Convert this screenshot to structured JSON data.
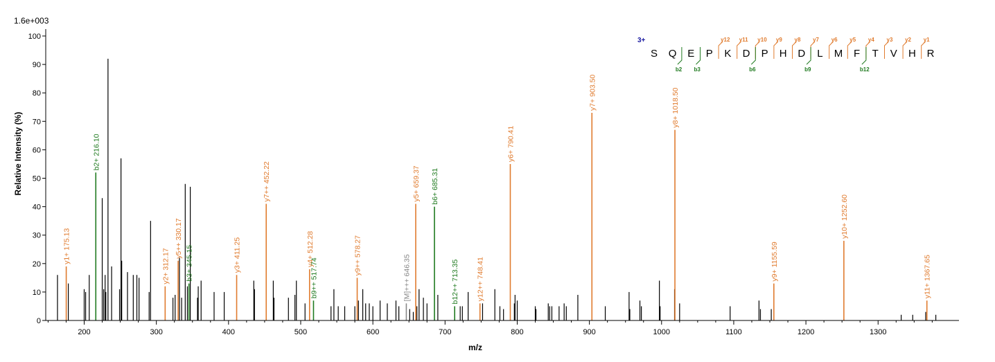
{
  "chart_data": {
    "type": "bar",
    "scale_label": "1.6e+003",
    "xlabel": "m/z",
    "ylabel": "Relative   Intensity (%)",
    "xlim": [
      150,
      1400
    ],
    "ylim": [
      0,
      100
    ],
    "xticks": [
      200,
      300,
      400,
      500,
      600,
      700,
      800,
      900,
      1000,
      1100,
      1200,
      1300
    ],
    "yticks": [
      0,
      10,
      20,
      30,
      40,
      50,
      60,
      70,
      80,
      90,
      100
    ],
    "colors": {
      "y_ion": "#e07b2e",
      "b_ion": "#1f7a1f",
      "precursor": "#888888",
      "unassigned": "#000000"
    },
    "peaks_unassigned": [
      [
        163,
        16
      ],
      [
        178,
        13
      ],
      [
        200,
        11
      ],
      [
        202,
        10
      ],
      [
        207,
        16
      ],
      [
        225,
        43
      ],
      [
        227,
        11
      ],
      [
        229,
        16
      ],
      [
        230,
        10
      ],
      [
        233,
        92
      ],
      [
        238,
        19
      ],
      [
        249,
        11
      ],
      [
        251,
        57
      ],
      [
        252,
        21
      ],
      [
        260,
        17
      ],
      [
        268,
        16
      ],
      [
        273,
        16
      ],
      [
        276,
        15
      ],
      [
        290,
        10
      ],
      [
        292,
        35
      ],
      [
        323,
        8
      ],
      [
        326,
        9
      ],
      [
        332,
        22
      ],
      [
        335,
        8
      ],
      [
        340,
        48
      ],
      [
        343,
        12
      ],
      [
        347,
        47
      ],
      [
        357,
        8
      ],
      [
        358,
        12
      ],
      [
        362,
        14
      ],
      [
        380,
        10
      ],
      [
        394,
        10
      ],
      [
        435,
        14
      ],
      [
        436,
        11
      ],
      [
        462,
        14
      ],
      [
        463,
        8
      ],
      [
        483,
        8
      ],
      [
        492,
        9
      ],
      [
        494,
        14
      ],
      [
        506,
        6
      ],
      [
        542,
        5
      ],
      [
        546,
        11
      ],
      [
        552,
        5
      ],
      [
        561,
        5
      ],
      [
        575,
        5
      ],
      [
        580,
        7
      ],
      [
        586,
        11
      ],
      [
        590,
        6
      ],
      [
        595,
        6
      ],
      [
        600,
        5
      ],
      [
        610,
        7
      ],
      [
        620,
        6
      ],
      [
        632,
        7
      ],
      [
        636,
        5
      ],
      [
        651,
        4
      ],
      [
        656,
        3
      ],
      [
        661,
        5
      ],
      [
        664,
        11
      ],
      [
        670,
        8
      ],
      [
        675,
        6
      ],
      [
        690,
        9
      ],
      [
        721,
        5
      ],
      [
        724,
        5
      ],
      [
        732,
        10
      ],
      [
        752,
        6
      ],
      [
        769,
        11
      ],
      [
        776,
        5
      ],
      [
        781,
        4
      ],
      [
        796,
        6
      ],
      [
        797,
        9
      ],
      [
        800,
        7
      ],
      [
        825,
        5
      ],
      [
        826,
        4
      ],
      [
        843,
        6
      ],
      [
        845,
        5
      ],
      [
        848,
        5
      ],
      [
        858,
        5
      ],
      [
        865,
        6
      ],
      [
        868,
        5
      ],
      [
        884,
        9
      ],
      [
        922,
        5
      ],
      [
        955,
        10
      ],
      [
        956,
        4
      ],
      [
        970,
        7
      ],
      [
        972,
        5
      ],
      [
        997,
        14
      ],
      [
        998,
        5
      ],
      [
        1018,
        11
      ],
      [
        1025,
        6
      ],
      [
        1095,
        5
      ],
      [
        1135,
        7
      ],
      [
        1137,
        4
      ],
      [
        1152,
        4
      ],
      [
        1332,
        2
      ],
      [
        1348,
        2
      ],
      [
        1366,
        3
      ],
      [
        1380,
        2
      ]
    ],
    "peaks_labeled": [
      {
        "mz": 175.13,
        "intensity": 19,
        "label": "y1+ 175.13",
        "ion": "y"
      },
      {
        "mz": 216.1,
        "intensity": 52,
        "label": "b2+ 216.10",
        "ion": "b"
      },
      {
        "mz": 312.17,
        "intensity": 12,
        "label": "y2+ 312.17",
        "ion": "y"
      },
      {
        "mz": 330.17,
        "intensity": 21,
        "label": "y5++ 330.17",
        "ion": "y"
      },
      {
        "mz": 345.15,
        "intensity": 13,
        "label": "b3+ 345.15",
        "ion": "b"
      },
      {
        "mz": 411.25,
        "intensity": 16,
        "label": "y3+ 411.25",
        "ion": "y"
      },
      {
        "mz": 452.22,
        "intensity": 41,
        "label": "y7++ 452.22",
        "ion": "y"
      },
      {
        "mz": 512.28,
        "intensity": 18,
        "label": "y4+ 512.28",
        "ion": "y"
      },
      {
        "mz": 517.74,
        "intensity": 7,
        "label": "b9++ 517.74",
        "ion": "b"
      },
      {
        "mz": 578.27,
        "intensity": 15,
        "label": "y9++ 578.27",
        "ion": "y"
      },
      {
        "mz": 646.35,
        "intensity": 6,
        "label": "[M]+++ 646.35",
        "ion": "p"
      },
      {
        "mz": 659.37,
        "intensity": 41,
        "label": "y5+ 659.37",
        "ion": "y"
      },
      {
        "mz": 685.31,
        "intensity": 40,
        "label": "b6+ 685.31",
        "ion": "b"
      },
      {
        "mz": 713.35,
        "intensity": 5,
        "label": "b12++ 713.35",
        "ion": "b"
      },
      {
        "mz": 748.41,
        "intensity": 6,
        "label": "y12++ 748.41",
        "ion": "y"
      },
      {
        "mz": 790.41,
        "intensity": 55,
        "label": "y6+ 790.41",
        "ion": "y"
      },
      {
        "mz": 903.5,
        "intensity": 73,
        "label": "y7+ 903.50",
        "ion": "y"
      },
      {
        "mz": 1018.5,
        "intensity": 67,
        "label": "y8+ 1018.50",
        "ion": "y"
      },
      {
        "mz": 1155.59,
        "intensity": 13,
        "label": "y9+ 1155.59",
        "ion": "y"
      },
      {
        "mz": 1252.6,
        "intensity": 28,
        "label": "y10+ 1252.60",
        "ion": "y"
      },
      {
        "mz": 1367.65,
        "intensity": 7,
        "label": "y11+ 1367.65",
        "ion": "y"
      }
    ],
    "sequence": {
      "charge": "3+",
      "residues": [
        "S",
        "Q",
        "E",
        "P",
        "K",
        "D",
        "P",
        "H",
        "D",
        "L",
        "M",
        "F",
        "T",
        "V",
        "H",
        "R"
      ],
      "y_ions": [
        {
          "after": 4,
          "label": "y12"
        },
        {
          "after": 5,
          "label": "y11"
        },
        {
          "after": 6,
          "label": "y10"
        },
        {
          "after": 7,
          "label": "y9"
        },
        {
          "after": 8,
          "label": "y8"
        },
        {
          "after": 9,
          "label": "y7"
        },
        {
          "after": 10,
          "label": "y6"
        },
        {
          "after": 11,
          "label": "y5"
        },
        {
          "after": 12,
          "label": "y4"
        },
        {
          "after": 13,
          "label": "y3"
        },
        {
          "after": 14,
          "label": "y2"
        },
        {
          "after": 15,
          "label": "y1"
        }
      ],
      "b_ions": [
        {
          "after": 2,
          "label": "b2"
        },
        {
          "after": 3,
          "label": "b3"
        },
        {
          "after": 6,
          "label": "b6"
        },
        {
          "after": 9,
          "label": "b9"
        },
        {
          "after": 12,
          "label": "b12"
        }
      ]
    }
  }
}
